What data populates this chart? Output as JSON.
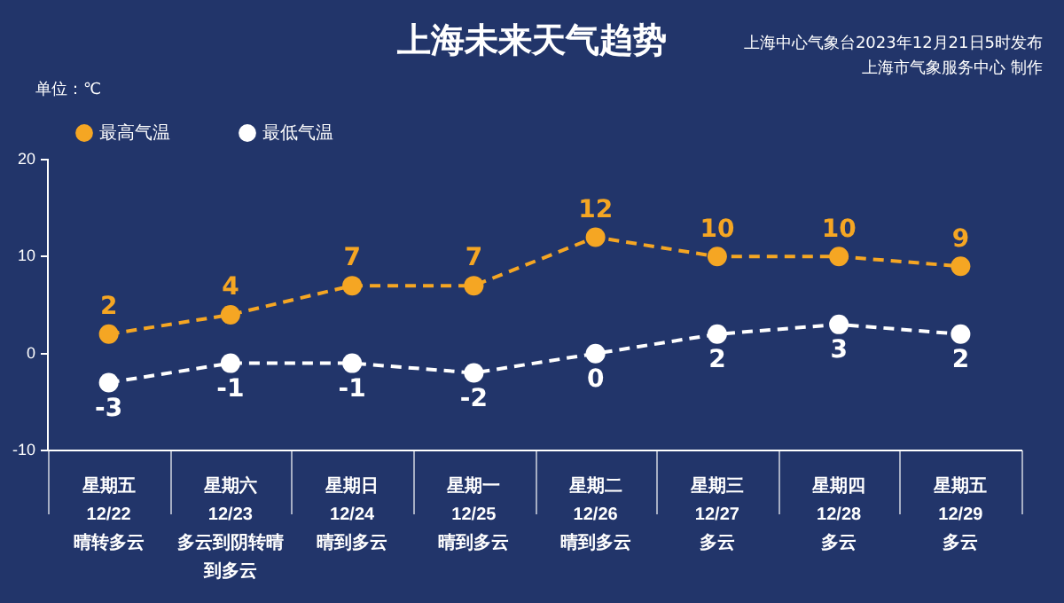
{
  "chart_data": {
    "type": "line",
    "title": "上海未来天气趋势",
    "ylabel": "单位：℃",
    "annotations": [
      "上海中心气象台2023年12月21日5时发布",
      "上海市气象服务中心 制作"
    ],
    "categories": [
      "星期五\n12/22\n晴转多云",
      "星期六\n12/23\n多云到阴转晴到多云",
      "星期日\n12/24\n晴到多云",
      "星期一\n12/25\n晴到多云",
      "星期二\n12/26\n晴到多云",
      "星期三\n12/27\n多云",
      "星期四\n12/28\n多云",
      "星期五\n12/29\n多云"
    ],
    "series": [
      {
        "name": "最高气温",
        "color": "#f5a623",
        "values": [
          2,
          4,
          7,
          7,
          12,
          10,
          10,
          9
        ]
      },
      {
        "name": "最低气温",
        "color": "#ffffff",
        "values": [
          -3,
          -1,
          -1,
          -2,
          0,
          2,
          3,
          2
        ]
      }
    ],
    "ylim": [
      -10,
      20
    ],
    "yticks": [
      -10,
      0,
      10,
      20
    ],
    "grid": false,
    "legend": "top left",
    "marker": "circle",
    "line_style": "dashed",
    "data_labels": true
  }
}
